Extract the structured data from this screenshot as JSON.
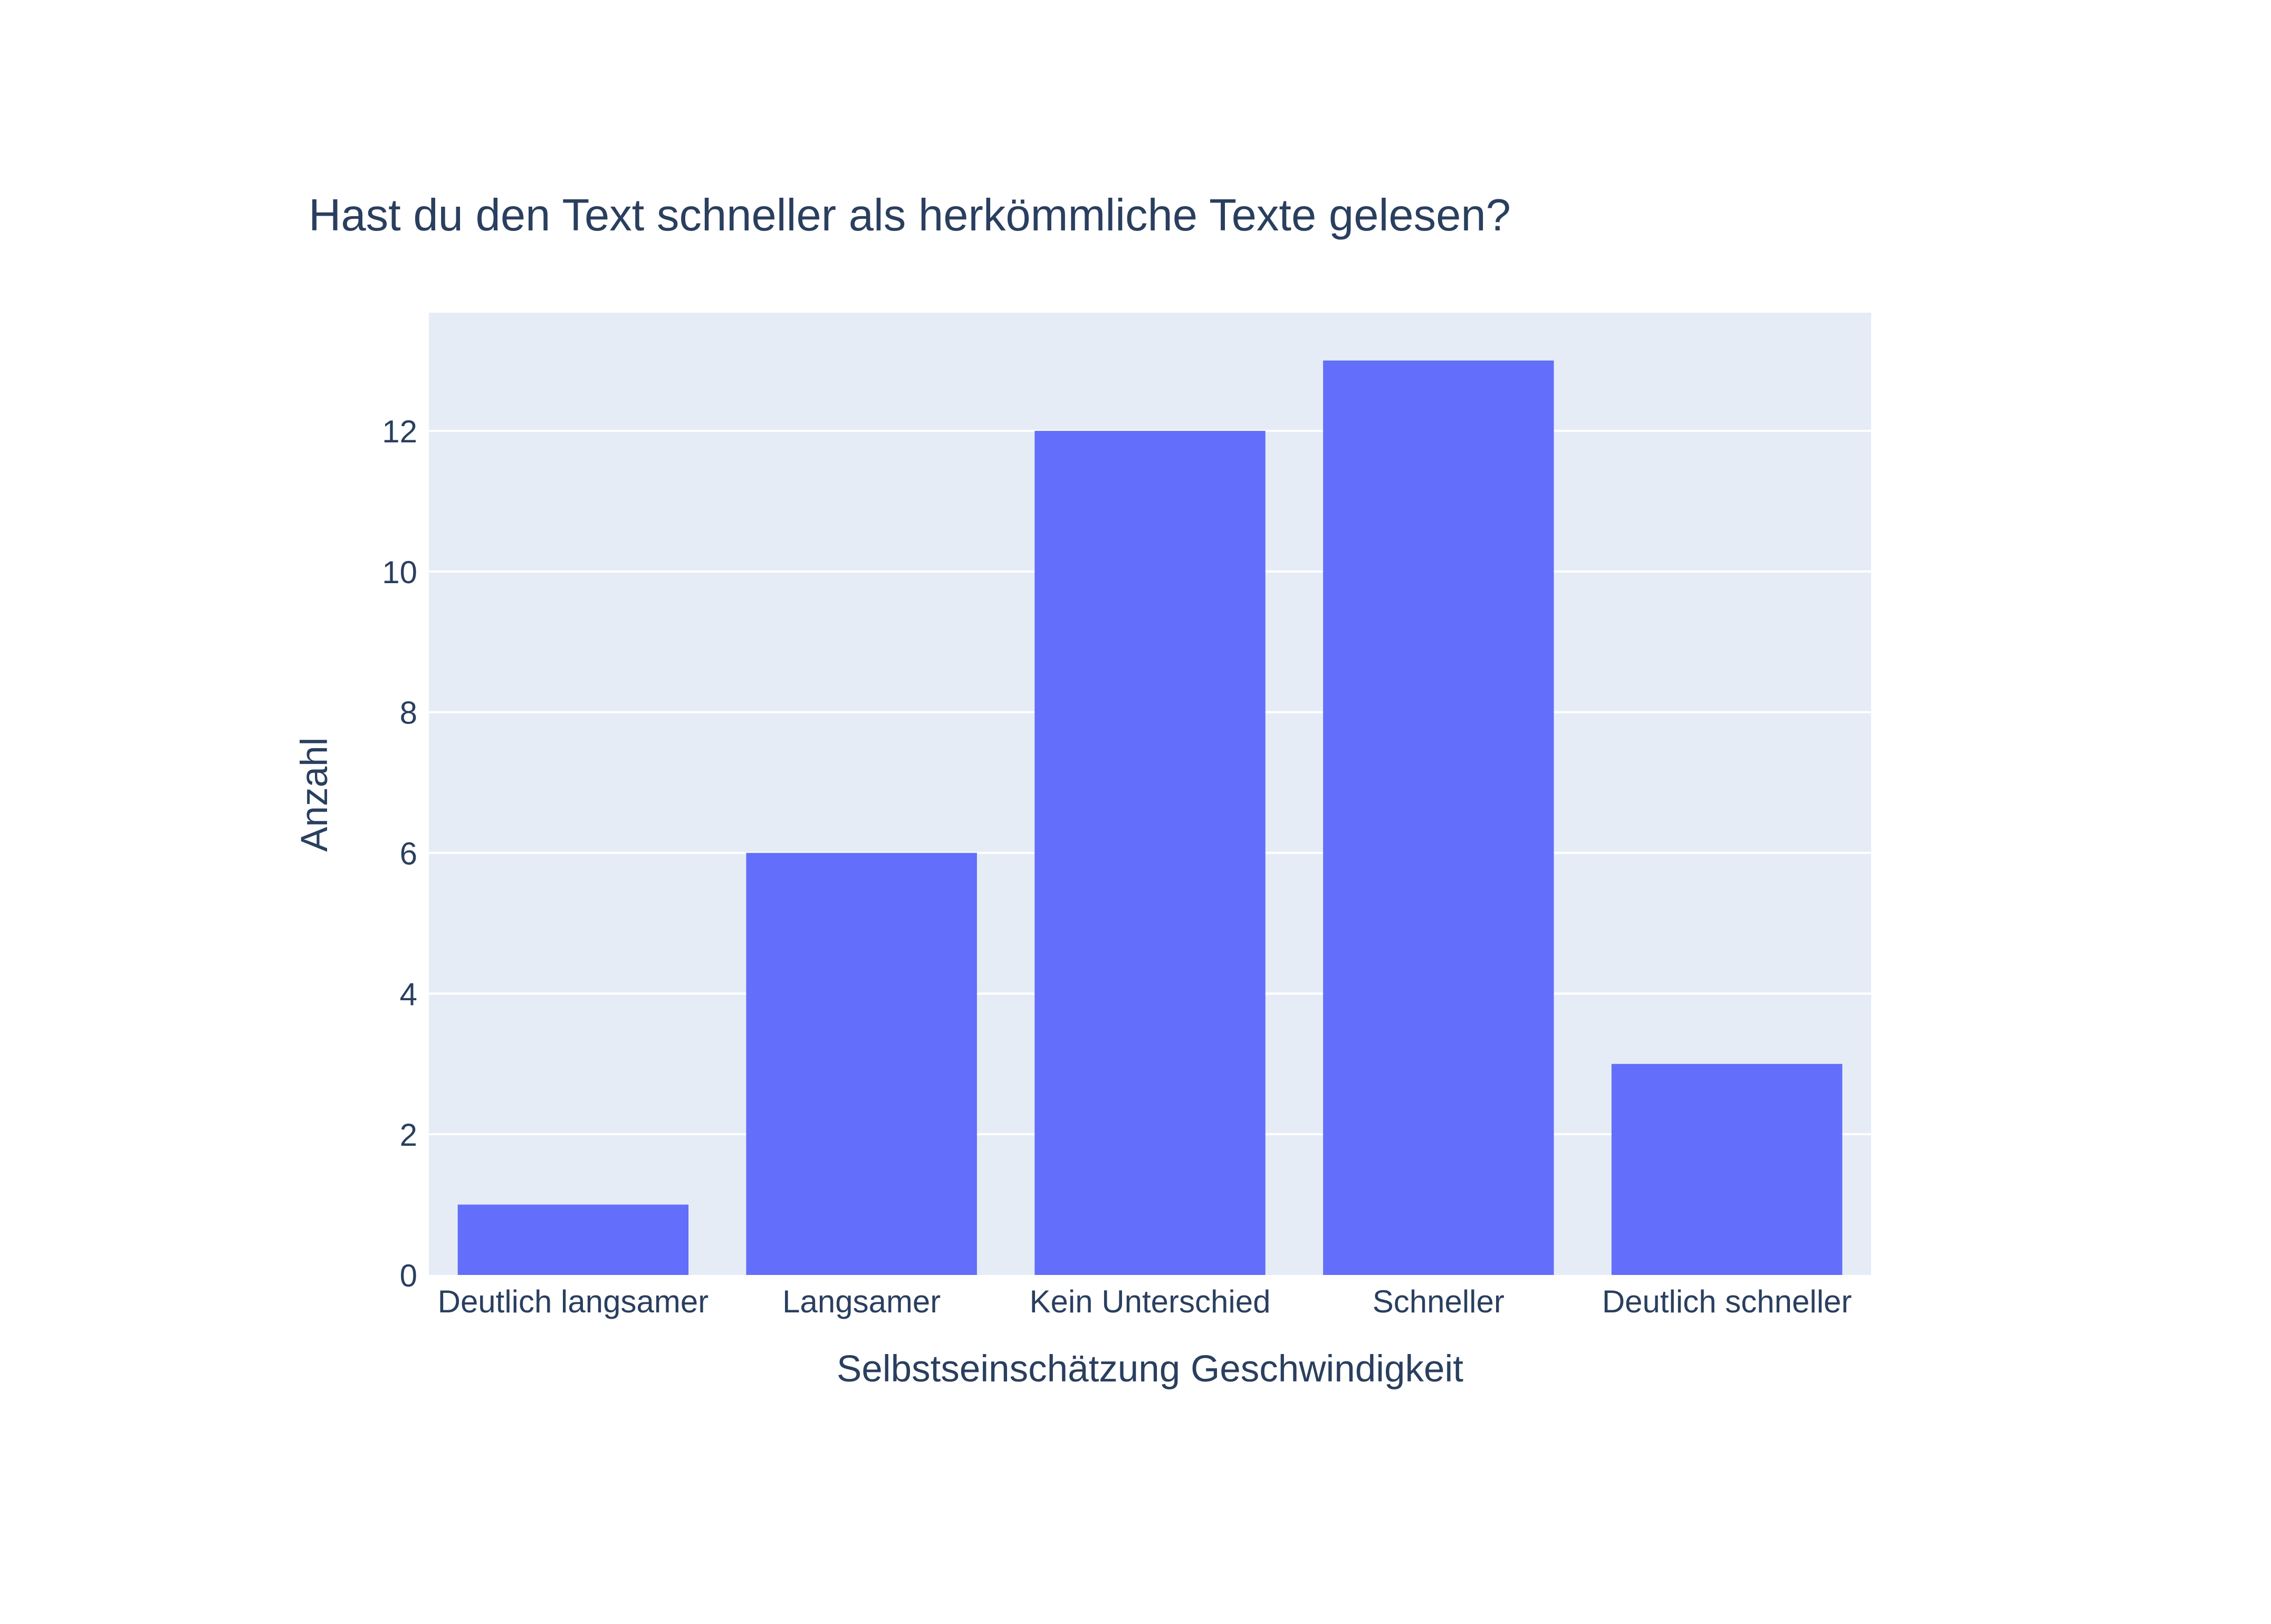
{
  "colors": {
    "background": "#ffffff",
    "plot_background": "#e5ecf6",
    "gridline": "#ffffff",
    "bar": "#636efa",
    "text": "#2a3f5f"
  },
  "chart_data": {
    "type": "bar",
    "title": "Hast du den Text schneller als herkömmliche Texte gelesen?",
    "xlabel": "Selbstseinschätzung Geschwindigkeit",
    "ylabel": "Anzahl",
    "categories": [
      "Deutlich langsamer",
      "Langsamer",
      "Kein Unterschied",
      "Schneller",
      "Deutlich schneller"
    ],
    "values": [
      1,
      6,
      12,
      13,
      3
    ],
    "ylim": [
      0,
      13.68
    ],
    "yticks": [
      0,
      2,
      4,
      6,
      8,
      10,
      12
    ],
    "grid": true,
    "legend": "none"
  }
}
